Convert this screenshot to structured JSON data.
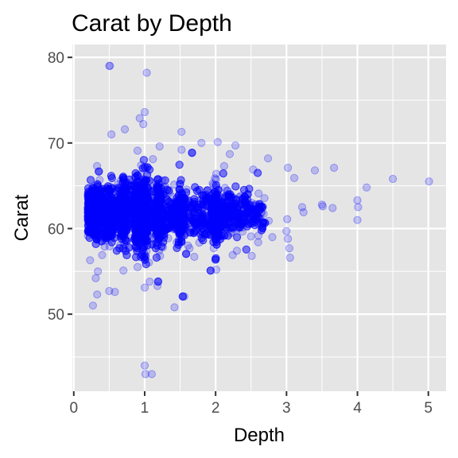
{
  "chart_data": {
    "type": "scatter",
    "title": "Carat by Depth",
    "xlabel": "Depth",
    "ylabel": "Carat",
    "xlim": [
      -0.02,
      5.25
    ],
    "ylim": [
      41,
      81.5
    ],
    "x_ticks": [
      0,
      1,
      2,
      3,
      4,
      5
    ],
    "x_tick_labels": [
      "0",
      "1",
      "2",
      "3",
      "4",
      "5"
    ],
    "y_ticks": [
      50,
      60,
      70,
      80
    ],
    "y_tick_labels": [
      "50",
      "60",
      "70",
      "80"
    ],
    "grid": true,
    "legend": "none",
    "colors": {
      "panel": "#e5e5e5",
      "grid": "#ffffff",
      "point": "#0000ff"
    },
    "point_opacity": 0.2,
    "outlier_points": [
      {
        "x": 0.5,
        "y": 79.0
      },
      {
        "x": 0.51,
        "y": 79.0
      },
      {
        "x": 1.03,
        "y": 78.2
      },
      {
        "x": 1.0,
        "y": 73.6
      },
      {
        "x": 0.93,
        "y": 72.9
      },
      {
        "x": 0.98,
        "y": 72.2
      },
      {
        "x": 0.72,
        "y": 71.6
      },
      {
        "x": 0.53,
        "y": 71.0
      },
      {
        "x": 1.52,
        "y": 71.3
      },
      {
        "x": 1.21,
        "y": 69.6
      },
      {
        "x": 1.8,
        "y": 70.0
      },
      {
        "x": 2.03,
        "y": 70.1
      },
      {
        "x": 2.28,
        "y": 69.7
      },
      {
        "x": 2.2,
        "y": 68.7
      },
      {
        "x": 2.74,
        "y": 68.2
      },
      {
        "x": 3.02,
        "y": 67.1
      },
      {
        "x": 3.11,
        "y": 65.9
      },
      {
        "x": 3.4,
        "y": 66.8
      },
      {
        "x": 3.67,
        "y": 67.1
      },
      {
        "x": 4.5,
        "y": 65.8
      },
      {
        "x": 5.01,
        "y": 65.5
      },
      {
        "x": 4.13,
        "y": 64.8
      },
      {
        "x": 4.0,
        "y": 63.3
      },
      {
        "x": 4.01,
        "y": 62.5
      },
      {
        "x": 4.0,
        "y": 61.0
      },
      {
        "x": 3.5,
        "y": 62.8
      },
      {
        "x": 3.51,
        "y": 62.6
      },
      {
        "x": 3.65,
        "y": 62.4
      },
      {
        "x": 3.22,
        "y": 62.5
      },
      {
        "x": 3.24,
        "y": 61.9
      },
      {
        "x": 3.01,
        "y": 61.1
      },
      {
        "x": 3.0,
        "y": 59.7
      },
      {
        "x": 3.02,
        "y": 58.8
      },
      {
        "x": 3.04,
        "y": 57.7
      },
      {
        "x": 3.05,
        "y": 56.6
      },
      {
        "x": 2.8,
        "y": 59.0
      },
      {
        "x": 2.75,
        "y": 60.9
      },
      {
        "x": 2.51,
        "y": 56.8
      },
      {
        "x": 2.24,
        "y": 56.9
      },
      {
        "x": 1.42,
        "y": 50.8
      },
      {
        "x": 1.18,
        "y": 53.3
      },
      {
        "x": 1.0,
        "y": 53.1
      },
      {
        "x": 1.07,
        "y": 53.8
      },
      {
        "x": 0.5,
        "y": 52.7
      },
      {
        "x": 0.58,
        "y": 52.6
      },
      {
        "x": 0.33,
        "y": 52.3
      },
      {
        "x": 0.27,
        "y": 51.0
      },
      {
        "x": 0.31,
        "y": 54.2
      },
      {
        "x": 0.34,
        "y": 55.0
      },
      {
        "x": 0.9,
        "y": 55.5
      },
      {
        "x": 1.0,
        "y": 44.0
      },
      {
        "x": 1.01,
        "y": 43.0
      },
      {
        "x": 1.1,
        "y": 43.0
      },
      {
        "x": 2.01,
        "y": 55.2
      },
      {
        "x": 1.7,
        "y": 56.7
      },
      {
        "x": 0.4,
        "y": 56.9
      },
      {
        "x": 0.23,
        "y": 56.3
      },
      {
        "x": 0.7,
        "y": 55.1
      },
      {
        "x": 2.3,
        "y": 57.4
      },
      {
        "x": 2.6,
        "y": 58.4
      },
      {
        "x": 0.4,
        "y": 63.9
      },
      {
        "x": 0.9,
        "y": 69.1
      },
      {
        "x": 1.52,
        "y": 69.2
      },
      {
        "x": 2.12,
        "y": 67.3
      },
      {
        "x": 2.53,
        "y": 66.9
      },
      {
        "x": 2.01,
        "y": 66.4
      }
    ],
    "dense_region": {
      "description_free": true,
      "x_range": [
        0.2,
        2.7
      ],
      "y_center": 61.7,
      "y_spread": 1.4,
      "concentration_x": [
        0.3,
        0.5,
        0.7,
        0.9,
        1.0,
        1.2,
        1.5,
        2.0
      ],
      "n_points": 6500
    }
  }
}
